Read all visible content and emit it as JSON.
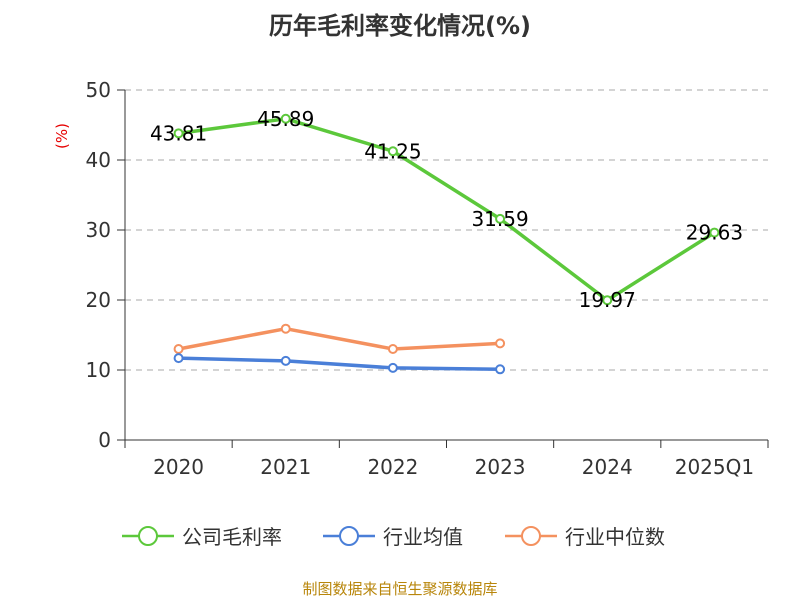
{
  "title": "历年毛利率变化情况(%)",
  "source": "制图数据来自恒生聚源数据库",
  "chart_data": {
    "type": "line",
    "title": "历年毛利率变化情况(%)",
    "ylabel": "(%)",
    "xlabel": "",
    "categories": [
      "2020",
      "2021",
      "2022",
      "2023",
      "2024",
      "2025Q1"
    ],
    "ylim": [
      0,
      50
    ],
    "yticks": [
      0,
      10,
      20,
      30,
      40,
      50
    ],
    "grid": "horizontal-dashed",
    "legend_position": "bottom",
    "series": [
      {
        "name": "公司毛利率",
        "color": "#5cc83b",
        "values": [
          43.81,
          45.89,
          41.25,
          31.59,
          19.97,
          29.63
        ],
        "labels": [
          "43.81",
          "45.89",
          "41.25",
          "31.59",
          "19.97",
          "29.63"
        ]
      },
      {
        "name": "行业均值",
        "color": "#4a7fd8",
        "values": [
          11.7,
          11.3,
          10.3,
          10.1,
          null,
          null
        ]
      },
      {
        "name": "行业中位数",
        "color": "#f4915f",
        "values": [
          13.0,
          15.9,
          13.0,
          13.8,
          null,
          null
        ]
      }
    ]
  }
}
